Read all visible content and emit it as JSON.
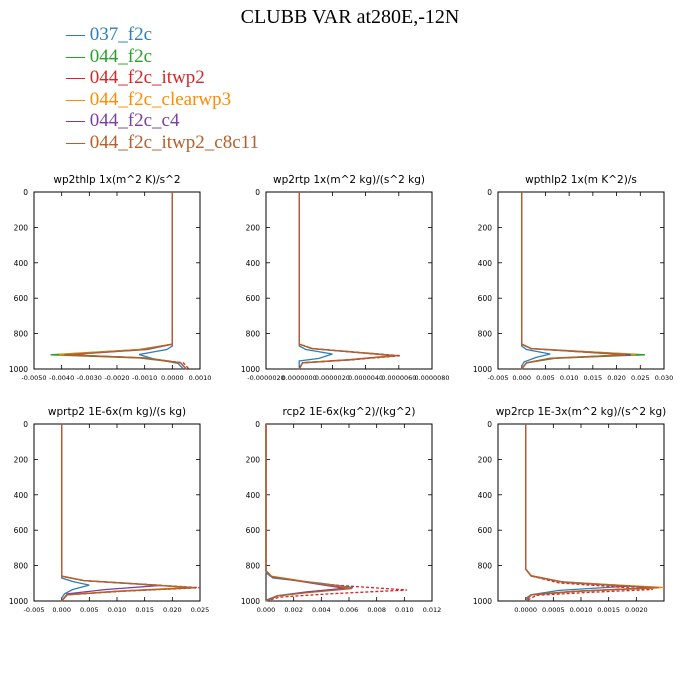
{
  "title": "CLUBB VAR at280E,-12N",
  "legend": [
    {
      "label": "037_f2c",
      "color": "#2b7fb8"
    },
    {
      "label": "044_f2c",
      "color": "#2ca02c"
    },
    {
      "label": "044_f2c_itwp2",
      "color": "#d62728"
    },
    {
      "label": "044_f2c_clearwp3",
      "color": "#ff8c00"
    },
    {
      "label": "044_f2c_c4",
      "color": "#7b3fa0"
    },
    {
      "label": "044_f2c_itwp2_c8c11",
      "color": "#b5602c"
    }
  ],
  "chart_data": [
    {
      "type": "line",
      "title": "wp2thlp   1x(m^2 K)/s^2",
      "xlim": [
        -0.005,
        0.001
      ],
      "xticks": [
        "-0.0050",
        "-0.0040",
        "-0.0030",
        "-0.0020",
        "-0.0010",
        "0.0000",
        "0.0010"
      ],
      "ylim": [
        1000,
        0
      ],
      "yticks": [
        "0",
        "200",
        "400",
        "600",
        "800",
        "1000"
      ],
      "series": [
        {
          "name": "037_f2c",
          "x": [
            0,
            0,
            0,
            -0.0002,
            -0.0012,
            -0.0007,
            0.0002,
            0.0004
          ],
          "y": [
            0,
            800,
            870,
            890,
            918,
            942,
            968,
            1000
          ]
        },
        {
          "name": "044_f2c",
          "x": [
            0,
            0,
            0,
            -0.0012,
            -0.0044,
            -0.0012,
            0.0003,
            0.0005
          ],
          "y": [
            0,
            800,
            860,
            890,
            920,
            938,
            965,
            1000
          ]
        },
        {
          "name": "044_f2c_itwp2",
          "x": [
            0,
            0,
            0,
            -0.0011,
            -0.004,
            -0.001,
            0.0004,
            0.0006
          ],
          "y": [
            0,
            800,
            860,
            890,
            920,
            938,
            965,
            1000
          ]
        },
        {
          "name": "044_f2c_clearwp3",
          "x": [
            0,
            0,
            0,
            -0.001,
            -0.0041,
            -0.0011,
            0.0003,
            0.0005
          ],
          "y": [
            0,
            800,
            860,
            888,
            918,
            936,
            965,
            1000
          ]
        },
        {
          "name": "044_f2c_c4",
          "x": [
            0,
            0,
            0,
            -0.0009,
            -0.0038,
            -0.001,
            0.0003,
            0.0005
          ],
          "y": [
            0,
            800,
            860,
            890,
            920,
            938,
            965,
            1000
          ]
        },
        {
          "name": "044_f2c_itwp2_c8c11",
          "x": [
            0,
            0,
            0,
            -0.001,
            -0.0039,
            -0.001,
            0.0003,
            0.0005
          ],
          "y": [
            0,
            800,
            860,
            890,
            920,
            938,
            965,
            1000
          ]
        }
      ]
    },
    {
      "type": "line",
      "title": "wp2rtp   1x(m^2 kg)/(s^2 kg)",
      "xlim": [
        -2e-06,
        8e-06
      ],
      "xticks": [
        "-0.0000020",
        "0.0000000",
        "0.0000020",
        "0.0000040",
        "0.0000060",
        "0.0000080"
      ],
      "ylim": [
        1000,
        0
      ],
      "yticks": [
        "0",
        "200",
        "400",
        "600",
        "800",
        "1000"
      ],
      "series": [
        {
          "name": "037_f2c",
          "x": [
            0,
            0,
            0,
            4e-07,
            2e-06,
            1.2e-06,
            0,
            0
          ],
          "y": [
            0,
            800,
            870,
            890,
            915,
            940,
            955,
            985
          ]
        },
        {
          "name": "044_f2c",
          "x": [
            0,
            0,
            0,
            8e-07,
            5.8e-06,
            3e-06,
            2e-07,
            0
          ],
          "y": [
            0,
            800,
            860,
            885,
            925,
            948,
            965,
            1000
          ]
        },
        {
          "name": "044_f2c_itwp2",
          "x": [
            0,
            0,
            0,
            8e-07,
            6.1e-06,
            3.2e-06,
            2e-07,
            0
          ],
          "y": [
            0,
            800,
            860,
            885,
            925,
            948,
            965,
            1000
          ]
        },
        {
          "name": "044_f2c_clearwp3",
          "x": [
            0,
            0,
            0,
            7e-07,
            5.7e-06,
            3e-06,
            2e-07,
            0
          ],
          "y": [
            0,
            800,
            858,
            884,
            924,
            947,
            965,
            1000
          ]
        },
        {
          "name": "044_f2c_c4",
          "x": [
            0,
            0,
            0,
            8e-07,
            5.8e-06,
            3e-06,
            2e-07,
            0
          ],
          "y": [
            0,
            800,
            860,
            885,
            925,
            948,
            965,
            1000
          ]
        },
        {
          "name": "044_f2c_itwp2_c8c11",
          "x": [
            0,
            0,
            0,
            8e-07,
            5.9e-06,
            3.1e-06,
            2e-07,
            0
          ],
          "y": [
            0,
            800,
            860,
            885,
            925,
            948,
            965,
            1000
          ]
        }
      ]
    },
    {
      "type": "line",
      "title": "wpthlp2   1x(m K^2)/s",
      "xlim": [
        -0.005,
        0.03
      ],
      "xticks": [
        "-0.005",
        "0.000",
        "0.005",
        "0.010",
        "0.015",
        "0.020",
        "0.025",
        "0.030"
      ],
      "ylim": [
        1000,
        0
      ],
      "yticks": [
        "0",
        "200",
        "400",
        "600",
        "800",
        "1000"
      ],
      "series": [
        {
          "name": "037_f2c",
          "x": [
            0,
            0,
            0,
            0.001,
            0.006,
            0.003,
            0.0005,
            0
          ],
          "y": [
            0,
            800,
            870,
            890,
            915,
            935,
            960,
            985
          ]
        },
        {
          "name": "044_f2c",
          "x": [
            0,
            0,
            0,
            0.002,
            0.026,
            0.007,
            0.001,
            0
          ],
          "y": [
            0,
            800,
            860,
            885,
            920,
            940,
            965,
            1000
          ]
        },
        {
          "name": "044_f2c_itwp2",
          "x": [
            0,
            0,
            0,
            0.002,
            0.022,
            0.006,
            0.001,
            0
          ],
          "y": [
            0,
            800,
            860,
            885,
            920,
            940,
            965,
            1000
          ]
        },
        {
          "name": "044_f2c_clearwp3",
          "x": [
            0,
            0,
            0,
            0.002,
            0.024,
            0.006,
            0.001,
            0
          ],
          "y": [
            0,
            800,
            858,
            884,
            918,
            939,
            965,
            1000
          ]
        },
        {
          "name": "044_f2c_c4",
          "x": [
            0,
            0,
            0,
            0.002,
            0.023,
            0.006,
            0.001,
            0
          ],
          "y": [
            0,
            800,
            860,
            885,
            920,
            940,
            965,
            1000
          ]
        },
        {
          "name": "044_f2c_itwp2_c8c11",
          "x": [
            0,
            0,
            0,
            0.002,
            0.022,
            0.006,
            0.001,
            0
          ],
          "y": [
            0,
            800,
            860,
            885,
            920,
            940,
            965,
            1000
          ]
        }
      ]
    },
    {
      "type": "line",
      "title": "wprtp2   1E-6x(m kg)/(s kg)",
      "xlim": [
        -0.005,
        0.025
      ],
      "xticks": [
        "-0.005",
        "0.000",
        "0.005",
        "0.010",
        "0.015",
        "0.020",
        "0.025"
      ],
      "ylim": [
        1000,
        0
      ],
      "yticks": [
        "0",
        "200",
        "400",
        "600",
        "800",
        "1000"
      ],
      "series": [
        {
          "name": "037_f2c",
          "x": [
            0,
            0,
            0,
            0.002,
            0.005,
            0.002,
            0.0005,
            0
          ],
          "y": [
            0,
            800,
            870,
            890,
            910,
            935,
            960,
            985
          ]
        },
        {
          "name": "044_f2c",
          "x": [
            0,
            0,
            0,
            0.004,
            0.024,
            0.01,
            0.001,
            0
          ],
          "y": [
            0,
            800,
            860,
            885,
            925,
            945,
            965,
            1000
          ]
        },
        {
          "name": "044_f2c_itwp2",
          "x": [
            0,
            0,
            0,
            0.004,
            0.025,
            0.011,
            0.001,
            0
          ],
          "y": [
            0,
            800,
            860,
            885,
            925,
            945,
            965,
            1000
          ]
        },
        {
          "name": "044_f2c_clearwp3",
          "x": [
            0,
            0,
            0,
            0.004,
            0.023,
            0.01,
            0.001,
            0
          ],
          "y": [
            0,
            800,
            858,
            884,
            924,
            944,
            965,
            1000
          ]
        },
        {
          "name": "044_f2c_c4",
          "x": [
            0,
            0,
            0,
            0.004,
            0.018,
            0.008,
            0.001,
            0
          ],
          "y": [
            0,
            800,
            860,
            885,
            912,
            935,
            960,
            1000
          ]
        },
        {
          "name": "044_f2c_itwp2_c8c11",
          "x": [
            0,
            0,
            0,
            0.004,
            0.024,
            0.01,
            0.001,
            0
          ],
          "y": [
            0,
            800,
            860,
            885,
            925,
            945,
            965,
            1000
          ]
        }
      ]
    },
    {
      "type": "line",
      "title": "rcp2   1E-6x(kg^2)/(kg^2)",
      "xlim": [
        0,
        0.012
      ],
      "xticks": [
        "0.000",
        "0.002",
        "0.004",
        "0.006",
        "0.008",
        "0.010",
        "0.012"
      ],
      "ylim": [
        1000,
        0
      ],
      "yticks": [
        "0",
        "200",
        "400",
        "600",
        "800",
        "1000"
      ],
      "series": [
        {
          "name": "037_f2c",
          "x": [
            0,
            0,
            0.0005,
            0.004,
            0.0063,
            0.003,
            0.0008,
            0
          ],
          "y": [
            0,
            840,
            870,
            900,
            925,
            948,
            970,
            995
          ]
        },
        {
          "name": "044_f2c",
          "x": [
            0,
            0,
            0.0004,
            0.0035,
            0.0058,
            0.003,
            0.0008,
            0
          ],
          "y": [
            0,
            830,
            862,
            900,
            928,
            950,
            972,
            1000
          ]
        },
        {
          "name": "044_f2c_itwp2",
          "x": [
            0,
            0,
            0.0004,
            0.004,
            0.0102,
            0.0045,
            0.001,
            0
          ],
          "y": [
            0,
            830,
            862,
            905,
            938,
            960,
            978,
            1000
          ]
        },
        {
          "name": "044_f2c_clearwp3",
          "x": [
            0,
            0,
            0.0004,
            0.0035,
            0.006,
            0.003,
            0.0008,
            0
          ],
          "y": [
            0,
            828,
            860,
            898,
            926,
            950,
            972,
            1000
          ]
        },
        {
          "name": "044_f2c_c4",
          "x": [
            0,
            0,
            0.0004,
            0.0034,
            0.0057,
            0.0029,
            0.0008,
            0
          ],
          "y": [
            0,
            830,
            862,
            900,
            928,
            950,
            972,
            1000
          ]
        },
        {
          "name": "044_f2c_itwp2_c8c11",
          "x": [
            0,
            0,
            0.0004,
            0.0036,
            0.0062,
            0.0031,
            0.0008,
            0
          ],
          "y": [
            0,
            830,
            862,
            900,
            930,
            952,
            972,
            1000
          ]
        }
      ]
    },
    {
      "type": "line",
      "title": "wp2rcp   1E-3x(m^2 kg)/(s^2 kg)",
      "xlim": [
        -0.0005,
        0.0025
      ],
      "xticks": [
        "0.0000",
        "0.0005",
        "0.0010",
        "0.0015",
        "0.0020"
      ],
      "ylim": [
        1000,
        0
      ],
      "yticks": [
        "0",
        "200",
        "400",
        "600",
        "800",
        "1000"
      ],
      "series": [
        {
          "name": "037_f2c",
          "x": [
            0,
            0,
            0.0001,
            0.0006,
            0.0019,
            0.0006,
            0.0001,
            0
          ],
          "y": [
            0,
            820,
            860,
            890,
            915,
            940,
            965,
            985
          ]
        },
        {
          "name": "044_f2c",
          "x": [
            0,
            0,
            0.0001,
            0.0007,
            0.0024,
            0.0009,
            0.0001,
            0
          ],
          "y": [
            0,
            820,
            858,
            895,
            925,
            945,
            965,
            1000
          ]
        },
        {
          "name": "044_f2c_itwp2",
          "x": [
            0,
            0,
            0.0001,
            0.0006,
            0.0023,
            0.0011,
            0.0002,
            0
          ],
          "y": [
            0,
            820,
            858,
            898,
            935,
            952,
            968,
            1000
          ]
        },
        {
          "name": "044_f2c_clearwp3",
          "x": [
            0,
            0,
            0.0001,
            0.0007,
            0.0025,
            0.0009,
            0.0001,
            0
          ],
          "y": [
            0,
            818,
            856,
            894,
            924,
            944,
            965,
            1000
          ]
        },
        {
          "name": "044_f2c_c4",
          "x": [
            0,
            0,
            0.0001,
            0.0007,
            0.0023,
            0.0009,
            0.0001,
            0
          ],
          "y": [
            0,
            820,
            858,
            895,
            925,
            945,
            965,
            1000
          ]
        },
        {
          "name": "044_f2c_itwp2_c8c11",
          "x": [
            0,
            0,
            0.0001,
            0.0007,
            0.0024,
            0.0009,
            0.0001,
            0
          ],
          "y": [
            0,
            820,
            858,
            895,
            925,
            945,
            965,
            1000
          ]
        }
      ]
    }
  ]
}
